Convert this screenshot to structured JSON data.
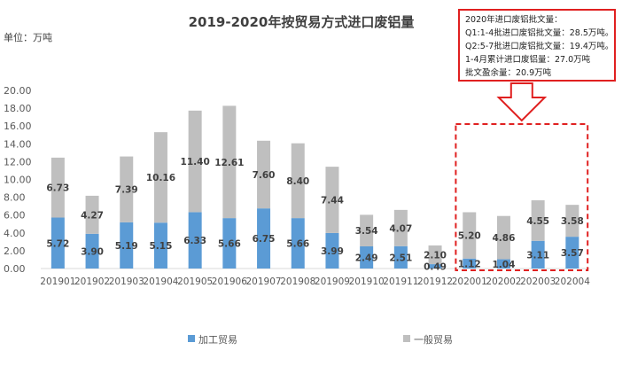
{
  "chart_data": {
    "type": "bar",
    "stacked": true,
    "title": "2019-2020年按贸易方式进口废铝量",
    "unit_label": "单位：万吨",
    "categories": [
      "201901",
      "201902",
      "201903",
      "201904",
      "201905",
      "201906",
      "201907",
      "201908",
      "201909",
      "201910",
      "201911",
      "201912",
      "202001",
      "202002",
      "202003",
      "202004"
    ],
    "series": [
      {
        "name": "加工贸易",
        "color": "#5b9bd5",
        "values": [
          5.72,
          3.9,
          5.19,
          5.15,
          6.33,
          5.66,
          6.75,
          5.66,
          3.99,
          2.49,
          2.51,
          0.49,
          1.12,
          1.04,
          3.11,
          3.57
        ]
      },
      {
        "name": "一般贸易",
        "color": "#bfbfbf",
        "values": [
          6.73,
          4.27,
          7.39,
          10.16,
          11.4,
          12.61,
          7.6,
          8.4,
          7.44,
          3.54,
          4.07,
          2.1,
          5.2,
          4.86,
          4.55,
          3.58
        ]
      }
    ],
    "yticks": [
      "0.00",
      "2.00",
      "4.00",
      "6.00",
      "8.00",
      "10.00",
      "12.00",
      "14.00",
      "16.00",
      "18.00",
      "20.00"
    ],
    "ylim": [
      0,
      20
    ],
    "grid": false,
    "legend_position": "bottom",
    "highlight_categories": [
      "202001",
      "202002",
      "202003",
      "202004"
    ],
    "highlight_color": "#e02020"
  },
  "annotation": {
    "lines": [
      "2020年进口废铝批文量：",
      "Q1:1-4批进口废铝批文量：28.5万吨。",
      "Q2:5-7批进口废铝批文量：19.4万吨。",
      "1-4月累计进口废铝量：27.0万吨",
      "批文盈余量：20.9万吨"
    ]
  }
}
